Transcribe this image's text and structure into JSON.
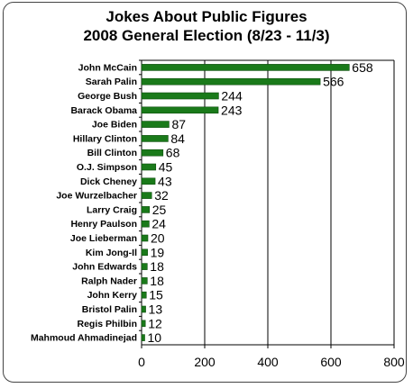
{
  "chart_data": {
    "type": "bar",
    "orientation": "horizontal",
    "title_lines": [
      "Jokes About Public Figures",
      "2008 General Election (8/23 - 11/3)"
    ],
    "categories": [
      "John McCain",
      "Sarah Palin",
      "George Bush",
      "Barack Obama",
      "Joe Biden",
      "Hillary Clinton",
      "Bill Clinton",
      "O.J. Simpson",
      "Dick Cheney",
      "Joe Wurzelbacher",
      "Larry Craig",
      "Henry Paulson",
      "Joe Lieberman",
      "Kim Jong-Il",
      "John Edwards",
      "Ralph Nader",
      "John Kerry",
      "Bristol Palin",
      "Regis Philbin",
      "Mahmoud Ahmadinejad"
    ],
    "values": [
      658,
      566,
      244,
      243,
      87,
      84,
      68,
      45,
      43,
      32,
      25,
      24,
      20,
      19,
      18,
      18,
      15,
      13,
      12,
      10
    ],
    "xlim": [
      0,
      800
    ],
    "xticks": [
      0,
      200,
      400,
      600,
      800
    ],
    "grid": true,
    "bar_color": "#1a7a1a",
    "grid_color": "#000000"
  }
}
